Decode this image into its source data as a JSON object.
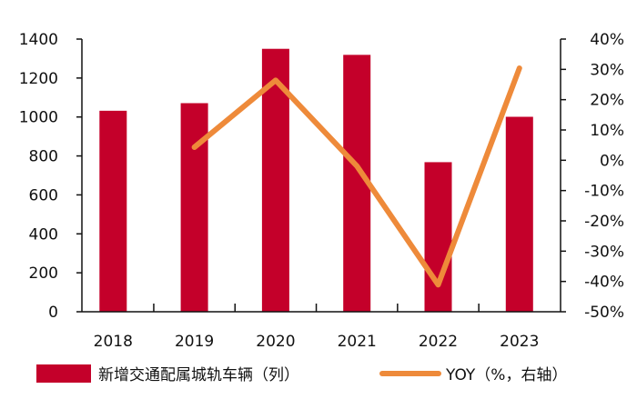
{
  "chart_data": {
    "type": "bar+line",
    "categories": [
      "2018",
      "2019",
      "2020",
      "2021",
      "2022",
      "2023"
    ],
    "series": [
      {
        "name": "新增交通配属城轨车辆（列）",
        "type": "bar",
        "axis": "left",
        "color": "#c4002a",
        "values": [
          1032,
          1071,
          1350,
          1319,
          768,
          1001
        ]
      },
      {
        "name": "YOY（%，右轴）",
        "type": "line",
        "axis": "right",
        "color": "#ee8a3a",
        "values": [
          null,
          4.3,
          26.4,
          -1.9,
          -41.1,
          30.4
        ]
      }
    ],
    "left_axis": {
      "ylim": [
        0,
        1400
      ],
      "ticks": [
        "0",
        "200",
        "400",
        "600",
        "800",
        "1000",
        "1200",
        "1400"
      ]
    },
    "right_axis": {
      "ylim": [
        -50,
        40
      ],
      "ticks": [
        "-50%",
        "-40%",
        "-30%",
        "-20%",
        "-10%",
        "0%",
        "10%",
        "20%",
        "30%",
        "40%"
      ]
    },
    "grid": false,
    "legend_position": "bottom"
  }
}
